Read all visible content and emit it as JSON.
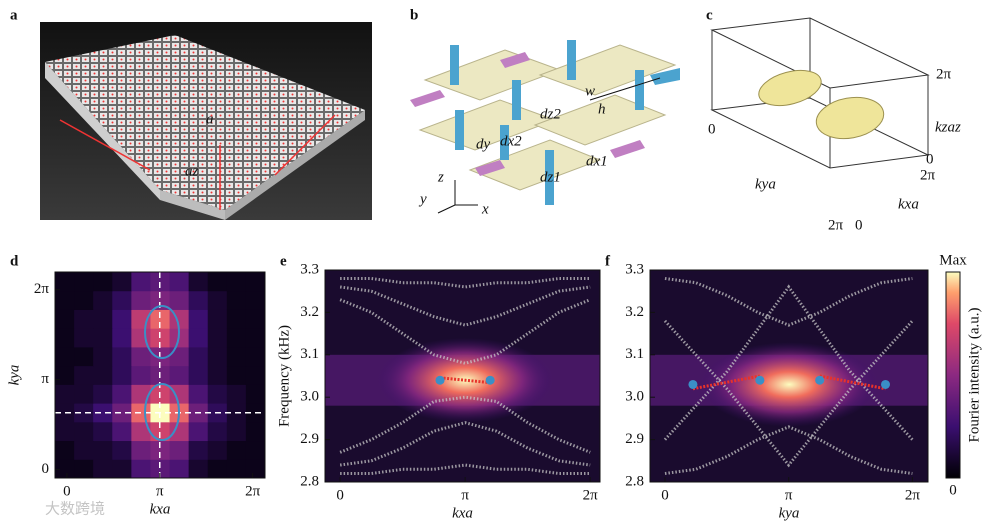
{
  "panels": {
    "a": {
      "label": "a",
      "texts": [
        "a",
        "az"
      ]
    },
    "b": {
      "label": "b",
      "texts": [
        "w",
        "h",
        "dz2",
        "dx2",
        "dy",
        "dz1",
        "dx1",
        "z",
        "y",
        "x"
      ]
    },
    "c": {
      "label": "c",
      "texts": [
        "2π",
        "0",
        "kzaz",
        "0",
        "2π",
        "kxa",
        "kya",
        "2π",
        "0"
      ]
    }
  },
  "chart_data": [
    {
      "panel": "d",
      "type": "heatmap",
      "xlabel": "kxa",
      "ylabel": "kya",
      "xlim": [
        -0.4,
        6.7
      ],
      "ylim": [
        -0.3,
        6.9
      ],
      "xticks": [
        0,
        {
          "value": 3.1416,
          "label": "π"
        },
        {
          "value": 6.2832,
          "label": "2π"
        }
      ],
      "yticks": [
        0,
        {
          "value": 3.1416,
          "label": "π"
        },
        {
          "value": 6.2832,
          "label": "2π"
        }
      ],
      "values": [
        [
          0.05,
          0.05,
          0.1,
          0.1,
          0.3,
          0.35,
          0.3,
          0.1,
          0.05,
          0.05,
          0.05
        ],
        [
          0.05,
          0.1,
          0.1,
          0.15,
          0.4,
          0.45,
          0.4,
          0.15,
          0.1,
          0.05,
          0.05
        ],
        [
          0.1,
          0.1,
          0.15,
          0.3,
          0.6,
          0.7,
          0.6,
          0.3,
          0.15,
          0.1,
          0.05
        ],
        [
          0.1,
          0.15,
          0.25,
          0.4,
          0.8,
          1.0,
          0.8,
          0.4,
          0.2,
          0.1,
          0.05
        ],
        [
          0.1,
          0.1,
          0.15,
          0.3,
          0.6,
          0.7,
          0.6,
          0.3,
          0.15,
          0.1,
          0.05
        ],
        [
          0.05,
          0.1,
          0.1,
          0.2,
          0.35,
          0.4,
          0.35,
          0.2,
          0.1,
          0.05,
          0.05
        ],
        [
          0.05,
          0.05,
          0.1,
          0.2,
          0.4,
          0.45,
          0.4,
          0.2,
          0.1,
          0.05,
          0.05
        ],
        [
          0.05,
          0.1,
          0.1,
          0.25,
          0.6,
          0.7,
          0.55,
          0.25,
          0.1,
          0.05,
          0.05
        ],
        [
          0.05,
          0.1,
          0.1,
          0.25,
          0.65,
          0.8,
          0.6,
          0.25,
          0.1,
          0.05,
          0.05
        ],
        [
          0.05,
          0.05,
          0.1,
          0.2,
          0.4,
          0.45,
          0.4,
          0.2,
          0.1,
          0.05,
          0.05
        ],
        [
          0.05,
          0.05,
          0.05,
          0.1,
          0.3,
          0.35,
          0.3,
          0.1,
          0.05,
          0.05,
          0.05
        ]
      ],
      "crosshair": {
        "x": 3.1416,
        "y": 1.98
      }
    },
    {
      "panel": "e",
      "type": "band",
      "xlabel": "kxa",
      "ylabel": "Frequency (kHz)",
      "xlim": [
        -0.38,
        6.53
      ],
      "ylim": [
        2.8,
        3.3
      ],
      "xticks": [
        0,
        {
          "value": 3.1416,
          "label": "π"
        },
        {
          "value": 6.2832,
          "label": "2π"
        }
      ],
      "yticks": [
        2.8,
        2.9,
        {
          "value": 3,
          "label": "3.0"
        },
        3.1,
        3.2,
        3.3
      ],
      "x": [
        0,
        0.785,
        1.571,
        2.356,
        3.142,
        3.927,
        4.712,
        5.498,
        6.283
      ],
      "series": [
        {
          "color": "#c8c8c8",
          "values": [
            3.28,
            3.28,
            3.27,
            3.27,
            3.26,
            3.27,
            3.27,
            3.28,
            3.28
          ]
        },
        {
          "color": "#c8c8c8",
          "values": [
            3.26,
            3.25,
            3.22,
            3.19,
            3.17,
            3.19,
            3.22,
            3.25,
            3.26
          ]
        },
        {
          "color": "#c8c8c8",
          "values": [
            3.23,
            3.2,
            3.15,
            3.1,
            3.08,
            3.1,
            3.15,
            3.2,
            3.23
          ]
        },
        {
          "color": "#c8c8c8",
          "values": [
            2.87,
            2.9,
            2.94,
            2.99,
            3.0,
            2.99,
            2.94,
            2.9,
            2.87
          ]
        },
        {
          "color": "#c8c8c8",
          "values": [
            2.84,
            2.85,
            2.88,
            2.92,
            2.94,
            2.92,
            2.88,
            2.85,
            2.84
          ]
        },
        {
          "color": "#c8c8c8",
          "values": [
            2.82,
            2.82,
            2.83,
            2.83,
            2.84,
            2.83,
            2.83,
            2.82,
            2.82
          ]
        }
      ],
      "points": {
        "color": "#3a8fc6",
        "x": [
          2.51,
          3.77
        ],
        "y": [
          3.04,
          3.04
        ]
      },
      "fit": {
        "color": "#e8322b",
        "x": [
          2.6,
          3.7
        ],
        "y": [
          3.045,
          3.035
        ]
      }
    },
    {
      "panel": "f",
      "type": "band",
      "xlabel": "kya",
      "xlim": [
        -0.38,
        6.68
      ],
      "ylim": [
        2.8,
        3.3
      ],
      "xticks": [
        0,
        {
          "value": 3.1416,
          "label": "π"
        },
        {
          "value": 6.2832,
          "label": "2π"
        }
      ],
      "yticks": [
        2.8,
        2.9,
        {
          "value": 3,
          "label": "3.0"
        },
        3.1,
        3.2,
        3.3
      ],
      "x": [
        0,
        0.785,
        1.571,
        2.356,
        3.142,
        3.927,
        4.712,
        5.498,
        6.283
      ],
      "series": [
        {
          "color": "#c8c8c8",
          "values": [
            3.28,
            3.27,
            3.24,
            3.2,
            3.17,
            3.2,
            3.24,
            3.27,
            3.28
          ]
        },
        {
          "color": "#c8c8c8",
          "values": [
            2.9,
            2.98,
            3.06,
            3.16,
            3.26,
            3.16,
            3.06,
            2.98,
            2.9
          ]
        },
        {
          "color": "#c8c8c8",
          "values": [
            3.18,
            3.1,
            3.02,
            2.93,
            2.84,
            2.93,
            3.02,
            3.1,
            3.18
          ]
        },
        {
          "color": "#c8c8c8",
          "values": [
            2.82,
            2.83,
            2.86,
            2.9,
            2.93,
            2.9,
            2.86,
            2.83,
            2.82
          ]
        }
      ],
      "points": {
        "color": "#3a8fc6",
        "x": [
          0.71,
          2.41,
          3.93,
          5.6
        ],
        "y": [
          3.03,
          3.04,
          3.04,
          3.03
        ]
      },
      "fit": {
        "color": "#e8322b",
        "x": [
          0.71,
          2.41,
          null,
          3.93,
          5.6
        ],
        "y": [
          3.02,
          3.05,
          null,
          3.05,
          3.02
        ]
      }
    }
  ],
  "colorbar": {
    "max_label": "Max",
    "min_label": "0",
    "title": "Fourier intensity (a.u.)"
  },
  "watermark": "大数跨境"
}
